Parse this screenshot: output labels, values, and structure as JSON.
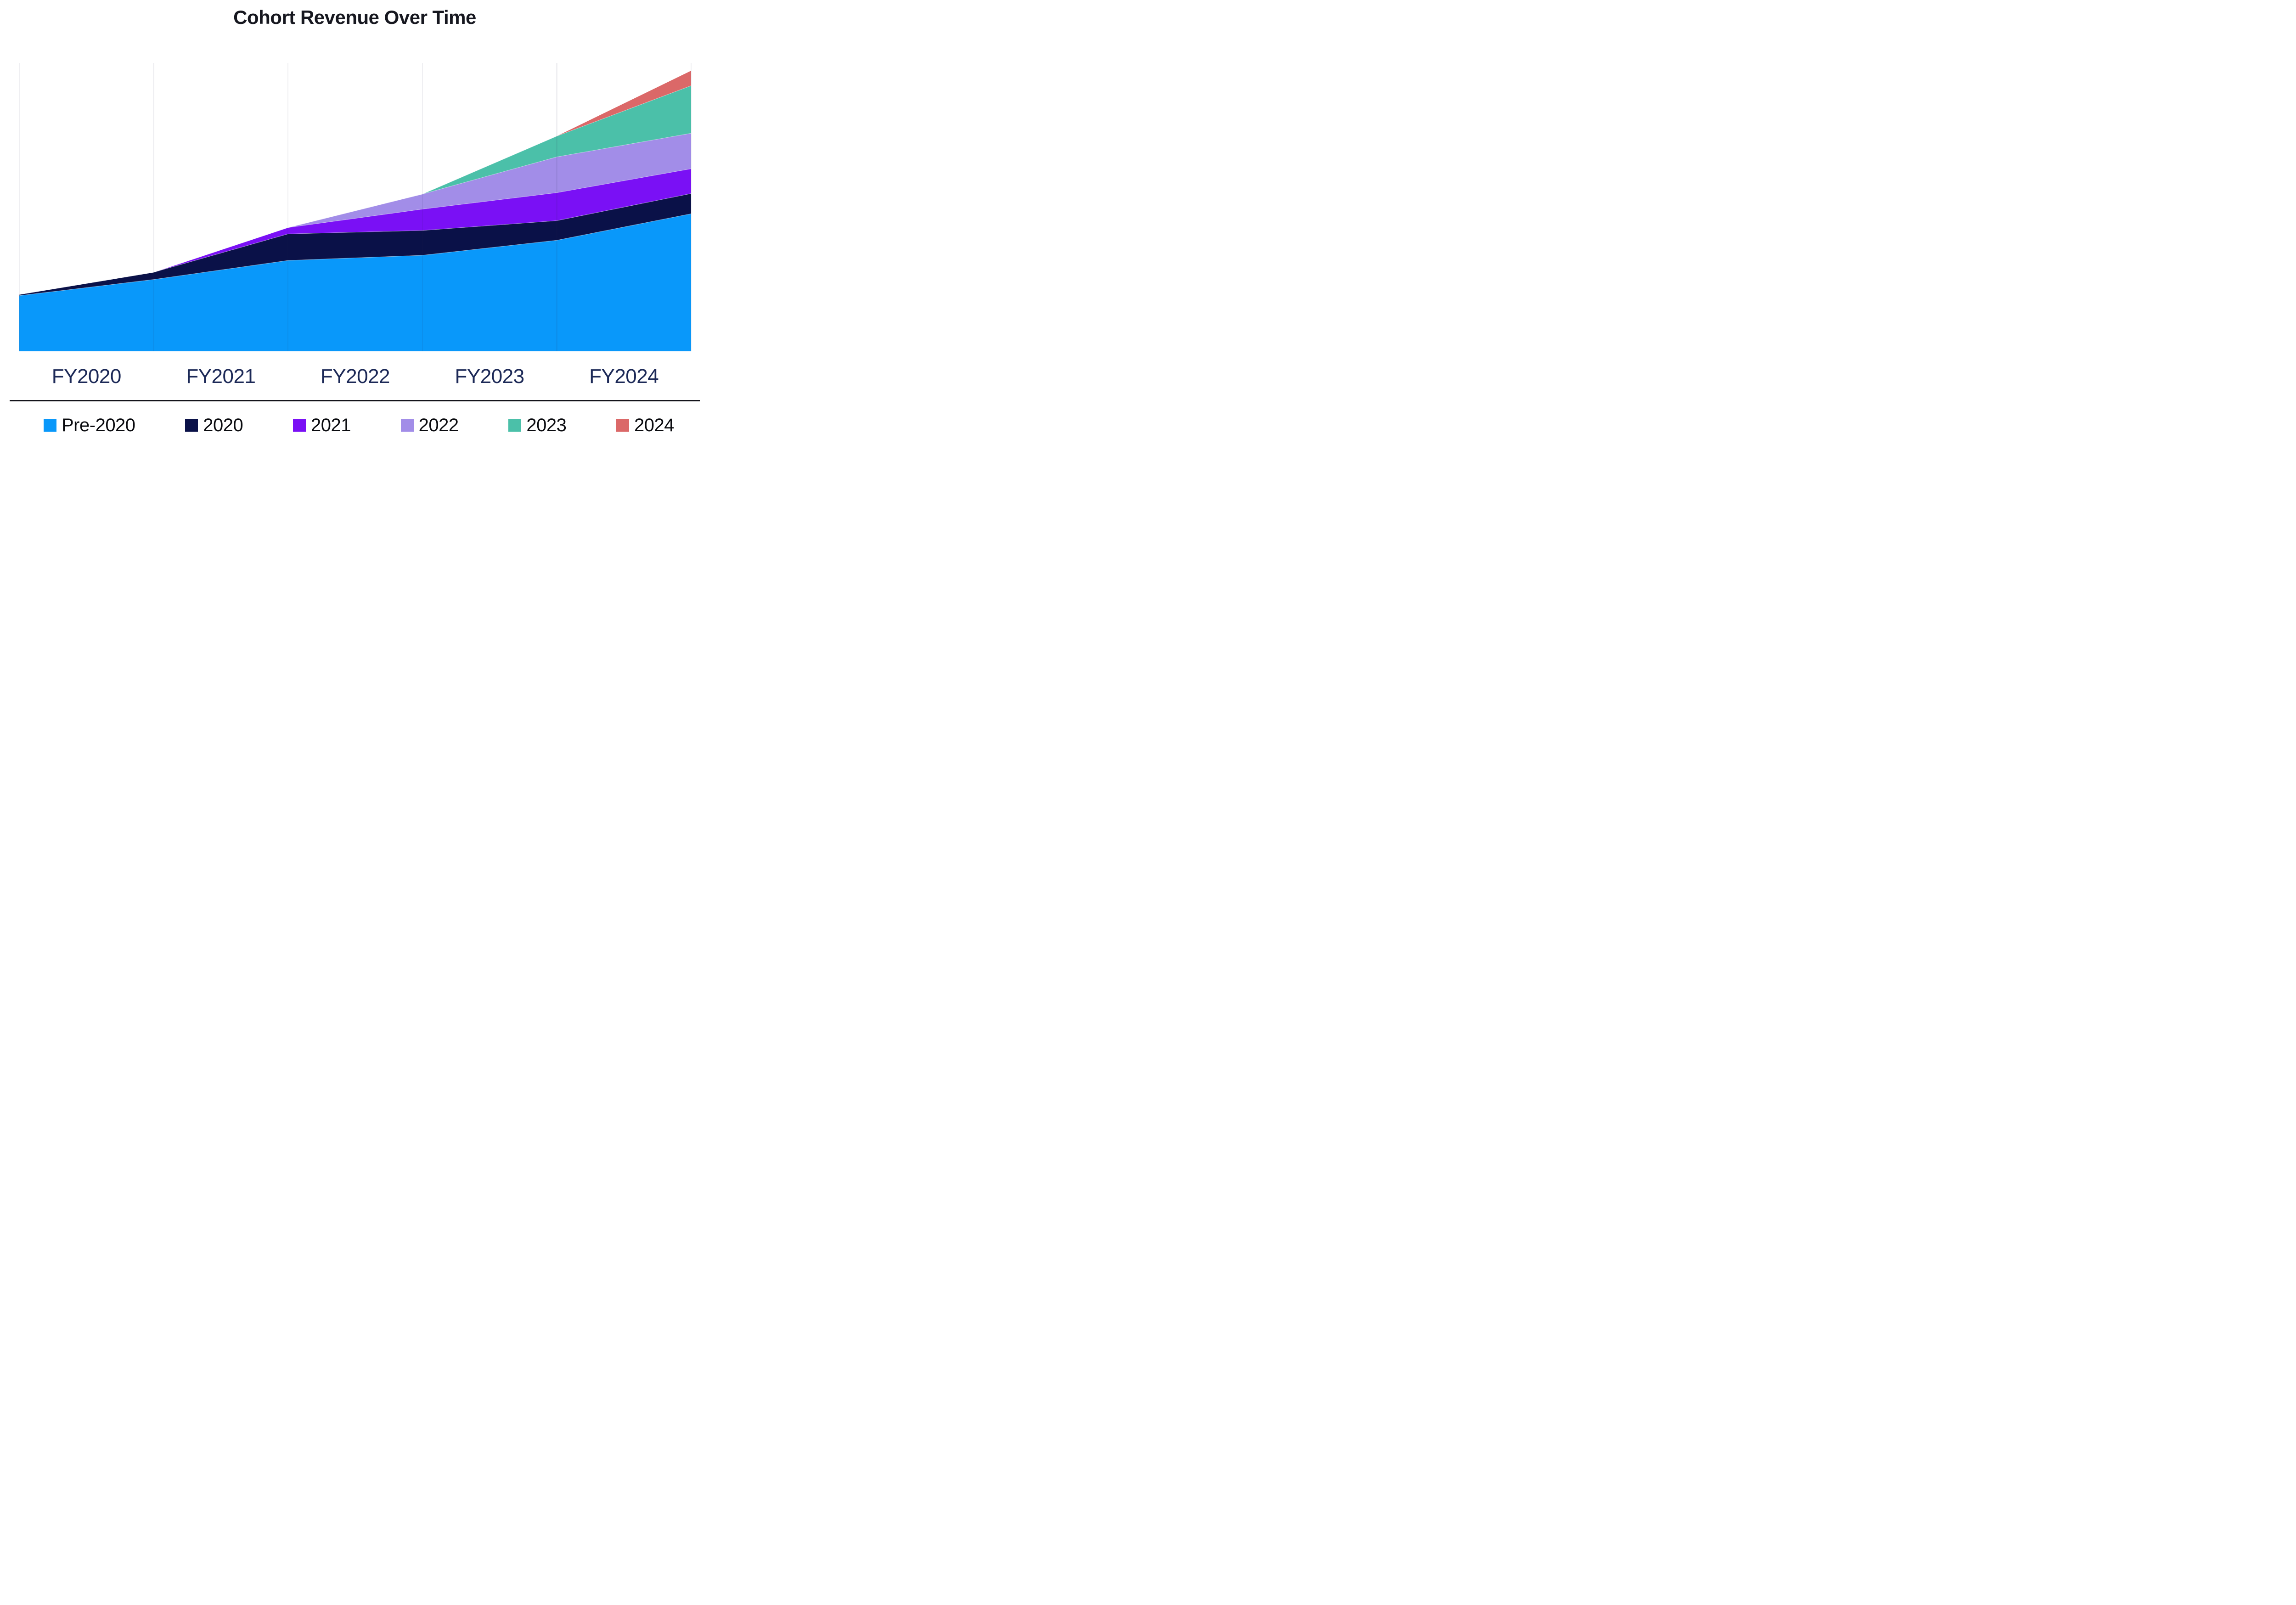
{
  "title": "Cohort Revenue Over Time",
  "x_axis": {
    "labels": [
      "FY2020",
      "FY2021",
      "FY2022",
      "FY2023",
      "FY2024"
    ]
  },
  "legend": {
    "items": [
      {
        "label": "Pre-2020",
        "color": "#0998FA"
      },
      {
        "label": "2020",
        "color": "#0A1148"
      },
      {
        "label": "2021",
        "color": "#7A10F5"
      },
      {
        "label": "2022",
        "color": "#A28DE8"
      },
      {
        "label": "2023",
        "color": "#4BC0A9"
      },
      {
        "label": "2024",
        "color": "#DB6868"
      }
    ]
  },
  "chart_data": {
    "type": "area",
    "stacked": true,
    "title": "Cohort Revenue Over Time",
    "x_boundary_points": [
      "FY2020 start",
      "FY2020 end",
      "FY2021 end",
      "FY2022 end",
      "FY2023 end",
      "FY2024 end"
    ],
    "x_interval_labels": [
      "FY2020",
      "FY2021",
      "FY2022",
      "FY2023",
      "FY2024"
    ],
    "y_axis_shown": false,
    "y_units": "relative revenue (% of plot height, no y-axis labels in original)",
    "ylim": [
      0,
      100
    ],
    "grid": "vertical gridlines at fiscal-year boundaries only",
    "legend_position": "bottom",
    "series": [
      {
        "name": "Pre-2020",
        "color": "#0998FA",
        "values": [
          19.3,
          24.9,
          31.5,
          33.3,
          38.5,
          47.7
        ]
      },
      {
        "name": "2020",
        "color": "#0A1148",
        "values": [
          0.4,
          2.5,
          9.2,
          8.6,
          6.8,
          7.0
        ]
      },
      {
        "name": "2021",
        "color": "#7A10F5",
        "values": [
          0,
          0,
          2.2,
          7.4,
          9.7,
          8.6
        ]
      },
      {
        "name": "2022",
        "color": "#A28DE8",
        "values": [
          0,
          0,
          0,
          5.2,
          12.4,
          12.3
        ]
      },
      {
        "name": "2023",
        "color": "#4BC0A9",
        "values": [
          0,
          0,
          0,
          0,
          7.2,
          16.5
        ]
      },
      {
        "name": "2024",
        "color": "#DB6868",
        "values": [
          0,
          0,
          0,
          0,
          0,
          5.2
        ]
      }
    ]
  }
}
